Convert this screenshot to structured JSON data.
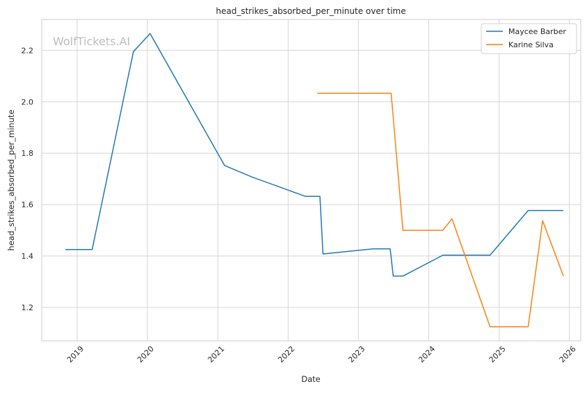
{
  "chart_data": {
    "type": "line",
    "title": "head_strikes_absorbed_per_minute over time",
    "xlabel": "Date",
    "ylabel": "head_strikes_absorbed_per_minute",
    "watermark": "WolfTickets.AI",
    "x_ticks": [
      "2019",
      "2020",
      "2021",
      "2022",
      "2023",
      "2024",
      "2025",
      "2026"
    ],
    "y_ticks": [
      "1.2",
      "1.4",
      "1.6",
      "1.8",
      "2.0",
      "2.2"
    ],
    "xlim": [
      "2018-07-01",
      "2026-03-01"
    ],
    "ylim": [
      1.07,
      2.32
    ],
    "grid": true,
    "legend_position": "top-right",
    "series": [
      {
        "name": "Maycee Barber",
        "color": "#1f77b4",
        "points": [
          [
            "2018-11-01",
            1.425
          ],
          [
            "2019-03-20",
            1.425
          ],
          [
            "2019-10-20",
            2.195
          ],
          [
            "2020-01-15",
            2.265
          ],
          [
            "2021-02-05",
            1.752
          ],
          [
            "2021-07-01",
            1.706
          ],
          [
            "2022-04-01",
            1.632
          ],
          [
            "2022-06-15",
            1.632
          ],
          [
            "2022-07-01",
            1.408
          ],
          [
            "2023-03-20",
            1.428
          ],
          [
            "2023-06-15",
            1.428
          ],
          [
            "2023-07-01",
            1.322
          ],
          [
            "2023-08-20",
            1.322
          ],
          [
            "2024-03-15",
            1.403
          ],
          [
            "2024-11-15",
            1.403
          ],
          [
            "2025-06-01",
            1.577
          ],
          [
            "2025-12-01",
            1.577
          ]
        ]
      },
      {
        "name": "Karine Silva",
        "color": "#ff7f0e",
        "points": [
          [
            "2022-06-01",
            2.033
          ],
          [
            "2023-06-20",
            2.033
          ],
          [
            "2023-08-20",
            1.5
          ],
          [
            "2024-03-15",
            1.5
          ],
          [
            "2024-05-01",
            1.545
          ],
          [
            "2024-11-15",
            1.125
          ],
          [
            "2025-06-01",
            1.125
          ],
          [
            "2025-08-15",
            1.537
          ],
          [
            "2025-12-01",
            1.322
          ]
        ]
      }
    ]
  }
}
